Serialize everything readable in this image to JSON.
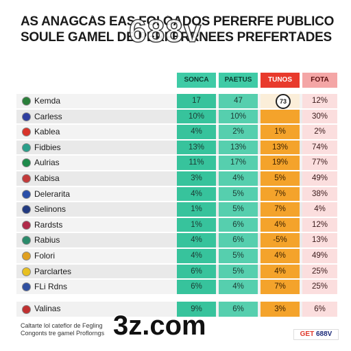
{
  "title": {
    "line1": "AS ANAGCÁS EAS FOI ÓADOS PERERFE PÚBLICO",
    "line2": "SOULE GAMEL DE PERFERRNEES PREFERTÁDES"
  },
  "watermark_top": "688v",
  "columns": [
    "SONCA",
    "PAETUS",
    "TUNOS",
    "FOTA"
  ],
  "clock_label": "73",
  "rows": [
    {
      "name": "Kemda",
      "values": [
        "17",
        "47",
        "",
        "12%"
      ],
      "flag": "#2a7f3a"
    },
    {
      "name": "Carless",
      "values": [
        "10%",
        "10%",
        "",
        "30%"
      ],
      "flag": "#2f3fa0"
    },
    {
      "name": "Kablea",
      "values": [
        "4%",
        "2%",
        "1%",
        "2%"
      ],
      "flag": "#d8342a"
    },
    {
      "name": "Fidbies",
      "values": [
        "13%",
        "13%",
        "13%",
        "74%"
      ],
      "flag": "#2a9f8a"
    },
    {
      "name": "Aulrias",
      "values": [
        "11%",
        "17%",
        "19%",
        "77%"
      ],
      "flag": "#1e8a4a"
    },
    {
      "name": "Kabisa",
      "values": [
        "3%",
        "4%",
        "5%",
        "49%"
      ],
      "flag": "#c23a3a"
    },
    {
      "name": "Delerarita",
      "values": [
        "4%",
        "5%",
        "7%",
        "38%"
      ],
      "flag": "#2a4fa8"
    },
    {
      "name": "Selinons",
      "values": [
        "1%",
        "5%",
        "7%",
        "4%"
      ],
      "flag": "#223a80"
    },
    {
      "name": "Rardsts",
      "values": [
        "1%",
        "6%",
        "4%",
        "12%"
      ],
      "flag": "#b02a4a"
    },
    {
      "name": "Rabius",
      "values": [
        "4%",
        "6%",
        "-5%",
        "13%"
      ],
      "flag": "#2a8a6a"
    },
    {
      "name": "Folori",
      "values": [
        "4%",
        "5%",
        "4%",
        "49%"
      ],
      "flag": "#e0a020"
    },
    {
      "name": "Parclartes",
      "values": [
        "6%",
        "5%",
        "4%",
        "25%"
      ],
      "flag": "#e8c020"
    },
    {
      "name": "FLi Rdns",
      "values": [
        "6%",
        "4%",
        "7%",
        "25%"
      ],
      "flag": "#3050a0"
    }
  ],
  "total": {
    "name": "Valinas",
    "values": [
      "9%",
      "6%",
      "3%",
      "6%"
    ],
    "flag": "#c03030"
  },
  "footer": {
    "line1": "Caltarte lol cateflor de Fegling",
    "line2": "Congonts tre gamel Proflorngs"
  },
  "watermark_bottom": "3z.com",
  "badge": {
    "get": "GET",
    "num": "688V"
  }
}
